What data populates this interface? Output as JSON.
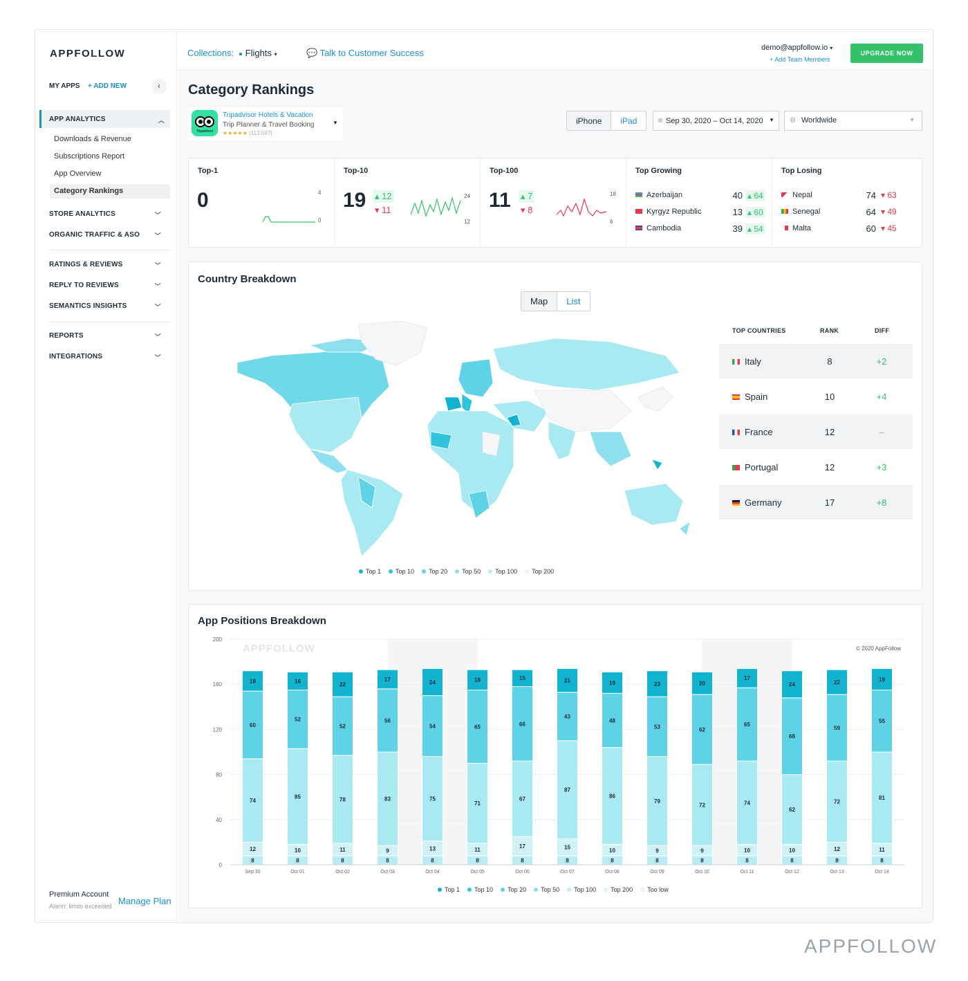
{
  "sidebar": {
    "logo": "APPFOLLOW",
    "my_apps": "MY APPS",
    "add_new": "+ ADD NEW",
    "sections": [
      {
        "label": "APP ANALYTICS",
        "items": [
          "Downloads & Revenue",
          "Subscriptions Report",
          "App Overview",
          "Category Rankings"
        ]
      },
      {
        "label": "STORE ANALYTICS"
      },
      {
        "label": "ORGANIC TRAFFIC & ASO"
      },
      {
        "label": "RATINGS & REVIEWS"
      },
      {
        "label": "REPLY TO REVIEWS"
      },
      {
        "label": "SEMANTICS INSIGHTS"
      },
      {
        "label": "REPORTS"
      },
      {
        "label": "INTEGRATIONS"
      }
    ],
    "premium": "Premium Account",
    "alarm": "Alarm: limits exceeded",
    "manage": "Manage Plan"
  },
  "topbar": {
    "collections": "Collections:",
    "collection_value": "Flights",
    "talk": "Talk to Customer Success",
    "email": "demo@appfollow.io",
    "add_team": "+ Add Team Members",
    "upgrade": "UPGRADE NOW"
  },
  "page": {
    "title": "Category Rankings",
    "app": {
      "name": "Tripadvisor Hotels & Vacation",
      "subtitle": "Trip Planner & Travel Booking",
      "rating_count": "(113 597)",
      "icon_text": "Tripadvisor"
    },
    "device": {
      "iphone": "iPhone",
      "ipad": "iPad"
    },
    "date_range": "Sep 30, 2020 – Oct 14, 2020",
    "region": "Worldwide"
  },
  "stats": {
    "top1": {
      "label": "Top-1",
      "value": "0",
      "max": "4",
      "min": "0"
    },
    "top10": {
      "label": "Top-10",
      "value": "19",
      "up": "12",
      "down": "11",
      "max": "24",
      "min": "12"
    },
    "top100": {
      "label": "Top-100",
      "value": "11",
      "up": "7",
      "down": "8",
      "max": "18",
      "min": "6"
    },
    "growing": {
      "label": "Top Growing",
      "rows": [
        {
          "country": "Azerbaijan",
          "rank": "40",
          "diff": "64"
        },
        {
          "country": "Kyrgyz Republic",
          "rank": "13",
          "diff": "60"
        },
        {
          "country": "Cambodia",
          "rank": "39",
          "diff": "54"
        }
      ]
    },
    "losing": {
      "label": "Top Losing",
      "rows": [
        {
          "country": "Nepal",
          "rank": "74",
          "diff": "63"
        },
        {
          "country": "Senegal",
          "rank": "64",
          "diff": "49"
        },
        {
          "country": "Malta",
          "rank": "60",
          "diff": "45"
        }
      ]
    }
  },
  "country": {
    "title": "Country Breakdown",
    "toggle": {
      "map": "Map",
      "list": "List"
    },
    "headers": {
      "country": "TOP COUNTRIES",
      "rank": "RANK",
      "diff": "DIFF"
    },
    "rows": [
      {
        "country": "Italy",
        "rank": "8",
        "diff": "+2"
      },
      {
        "country": "Spain",
        "rank": "10",
        "diff": "+4"
      },
      {
        "country": "France",
        "rank": "12",
        "diff": "–"
      },
      {
        "country": "Portugal",
        "rank": "12",
        "diff": "+3"
      },
      {
        "country": "Germany",
        "rank": "17",
        "diff": "+8"
      }
    ],
    "legend": [
      "Top 1",
      "Top 10",
      "Top 20",
      "Top 50",
      "Top 100",
      "Top 200"
    ],
    "legend_colors": [
      "#12b3cf",
      "#2fc4dc",
      "#5ed3e6",
      "#8fe0ee",
      "#b9ecf4",
      "#e1f6fa"
    ]
  },
  "positions": {
    "title": "App Positions Breakdown",
    "watermark": "APPFOLLOW",
    "copyright": "© 2020 AppFollow",
    "chart_data": {
      "type": "bar",
      "stacked": true,
      "categories": [
        "Sep 30",
        "Oct 01",
        "Oct 02",
        "Oct 03",
        "Oct 04",
        "Oct 05",
        "Oct 06",
        "Oct 07",
        "Oct 08",
        "Oct 09",
        "Oct 10",
        "Oct 11",
        "Oct 12",
        "Oct 13",
        "Oct 14"
      ],
      "ylim": [
        0,
        200
      ],
      "yticks": [
        0,
        40,
        80,
        120,
        160,
        200
      ],
      "series": [
        {
          "name": "Top 10",
          "color": "#b9ecf4",
          "values": [
            8,
            8,
            8,
            8,
            8,
            8,
            8,
            8,
            8,
            8,
            8,
            8,
            8,
            8,
            8
          ]
        },
        {
          "name": "Top 20",
          "color": "#d0f2f7",
          "values": [
            12,
            10,
            11,
            9,
            13,
            11,
            17,
            15,
            10,
            9,
            9,
            10,
            10,
            12,
            11
          ]
        },
        {
          "name": "Top 50",
          "color": "#a8e9f2",
          "values": [
            74,
            85,
            78,
            83,
            75,
            71,
            67,
            87,
            86,
            79,
            72,
            74,
            62,
            72,
            81
          ]
        },
        {
          "name": "Top 100",
          "color": "#5ed3e6",
          "values": [
            60,
            52,
            52,
            56,
            54,
            65,
            66,
            43,
            48,
            53,
            62,
            65,
            68,
            59,
            55
          ]
        },
        {
          "name": "Top 200",
          "color": "#12b3cf",
          "values": [
            18,
            16,
            22,
            17,
            24,
            18,
            15,
            21,
            19,
            23,
            20,
            17,
            24,
            22,
            19
          ]
        }
      ],
      "legend": [
        "Top 1",
        "Top 10",
        "Top 20",
        "Top 50",
        "Top 100",
        "Top 200",
        "Too low"
      ],
      "legend_colors": [
        "#12b3cf",
        "#2fc4dc",
        "#5ed3e6",
        "#8fe0ee",
        "#b9ecf4",
        "#d9f4f8",
        "#ffffff"
      ]
    }
  },
  "brand_watermark": "APPFOLLOW"
}
